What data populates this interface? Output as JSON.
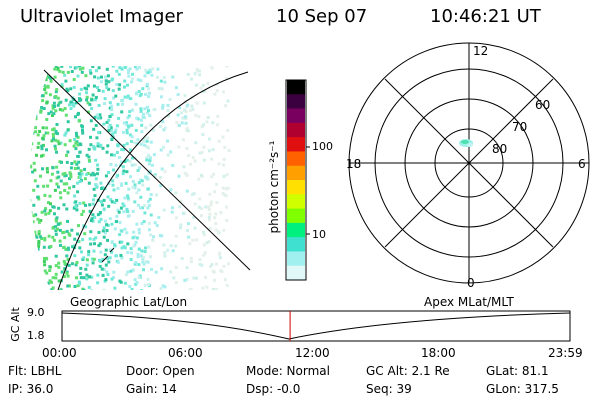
{
  "header": {
    "title": "Ultraviolet Imager",
    "date": "10 Sep 07",
    "time": "10:46:21 UT"
  },
  "colorbar": {
    "unit_label": "photon cm⁻²s⁻¹",
    "ticks": [
      "100",
      "10"
    ],
    "colors": [
      "#000000",
      "#3a0040",
      "#7a0060",
      "#b00030",
      "#e01010",
      "#ff6000",
      "#ffa000",
      "#ffe000",
      "#d0ff00",
      "#80ff00",
      "#00f080",
      "#40e0d0",
      "#a0f0f0",
      "#e0f8f8"
    ]
  },
  "polar_plot": {
    "mlt_labels": {
      "top": "12",
      "left": "18",
      "right": "6",
      "bottom": "0"
    },
    "lat_labels": [
      "60",
      "70",
      "80"
    ]
  },
  "timeline": {
    "y_axis_label": "GC Alt",
    "y_max": "9.0",
    "y_min": "1.8",
    "left_caption": "Geographic Lat/Lon",
    "right_caption": "Apex  MLat/MLT",
    "ticks": [
      "00:00",
      "06:00",
      "12:00",
      "18:00",
      "23:59"
    ],
    "current_time_fraction": 0.449,
    "marker_color": "#d00000"
  },
  "status": {
    "filter": "Flt: LBHL",
    "ip": "IP: 36.0",
    "door": "Door: Open",
    "gain": "Gain: 14",
    "mode": "Mode: Normal",
    "dsp": "Dsp:   -0.0",
    "gc_alt": "GC Alt: 2.1 Re",
    "seq": "Seq: 39",
    "glat": "GLat:  81.1",
    "glon": "GLon: 317.5"
  }
}
